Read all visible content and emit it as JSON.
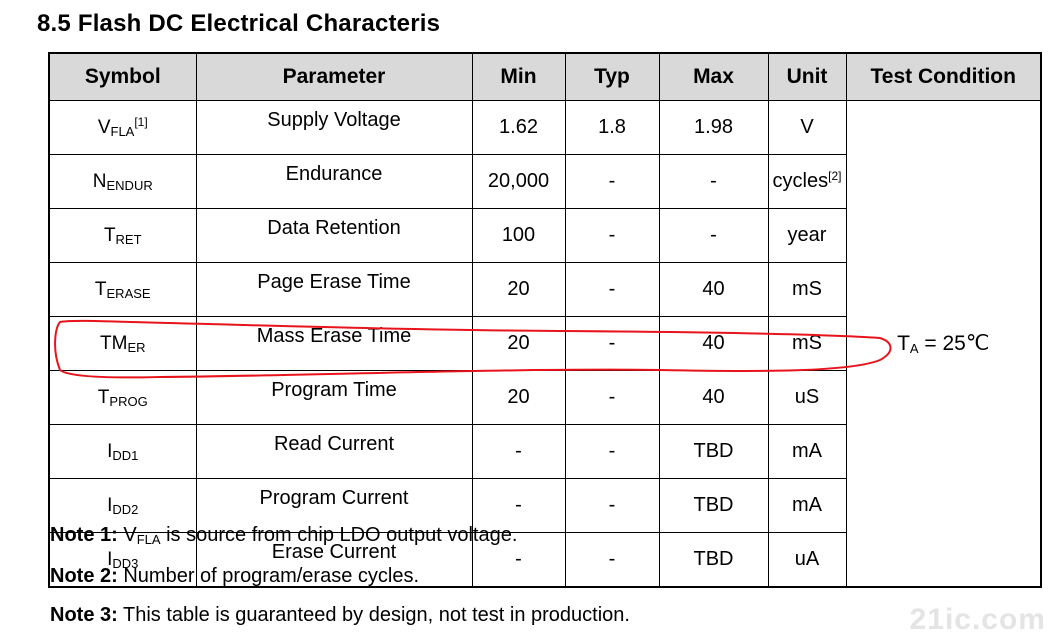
{
  "title": "8.5 Flash DC Electrical Characteris",
  "headers": [
    "Symbol",
    "Parameter",
    "Min",
    "Typ",
    "Max",
    "Unit",
    "Test Condition"
  ],
  "rows": [
    {
      "sym": "V",
      "sub": "FLA",
      "sup": "[1]",
      "param": "Supply Voltage",
      "min": "1.62",
      "typ": "1.8",
      "max": "1.98",
      "unit": "V",
      "unit_sup": ""
    },
    {
      "sym": "N",
      "sub": "ENDUR",
      "sup": "",
      "param": "Endurance",
      "min": "20,000",
      "typ": "-",
      "max": "-",
      "unit": "cycles",
      "unit_sup": "[2]"
    },
    {
      "sym": "T",
      "sub": "RET",
      "sup": "",
      "param": "Data Retention",
      "min": "100",
      "typ": "-",
      "max": "-",
      "unit": "year",
      "unit_sup": ""
    },
    {
      "sym": "T",
      "sub": "ERASE",
      "sup": "",
      "param": "Page Erase Time",
      "min": "20",
      "typ": "-",
      "max": "40",
      "unit": "mS",
      "unit_sup": ""
    },
    {
      "sym": "TM",
      "sub": "ER",
      "sup": "",
      "param": "Mass Erase Time",
      "min": "20",
      "typ": "-",
      "max": "40",
      "unit": "mS",
      "unit_sup": ""
    },
    {
      "sym": "T",
      "sub": "PROG",
      "sup": "",
      "param": "Program Time",
      "min": "20",
      "typ": "-",
      "max": "40",
      "unit": "uS",
      "unit_sup": ""
    },
    {
      "sym": "I",
      "sub": "DD1",
      "sup": "",
      "param": "Read Current",
      "min": "-",
      "typ": "-",
      "max": "TBD",
      "unit": "mA",
      "unit_sup": ""
    },
    {
      "sym": "I",
      "sub": "DD2",
      "sup": "",
      "param": "Program Current",
      "min": "-",
      "typ": "-",
      "max": "TBD",
      "unit": "mA",
      "unit_sup": ""
    },
    {
      "sym": "I",
      "sub": "DD3",
      "sup": "",
      "param": "Erase Current",
      "min": "-",
      "typ": "-",
      "max": "TBD",
      "unit": "uA",
      "unit_sup": ""
    }
  ],
  "test_condition": {
    "main": "T",
    "sub": "A",
    "rest": " = 25℃"
  },
  "notes": [
    {
      "label": "Note 1:",
      "pre": " V",
      "sub": "FLA",
      "post": " is source from chip LDO output voltage."
    },
    {
      "label": "Note 2:",
      "pre": " Number of program/erase cycles.",
      "sub": "",
      "post": ""
    },
    {
      "label": "Note 3:",
      "pre": " This table is guaranteed by design, not test in production.",
      "sub": "",
      "post": ""
    }
  ],
  "annotation_color": "#e8141b",
  "watermark": "21ic.com"
}
